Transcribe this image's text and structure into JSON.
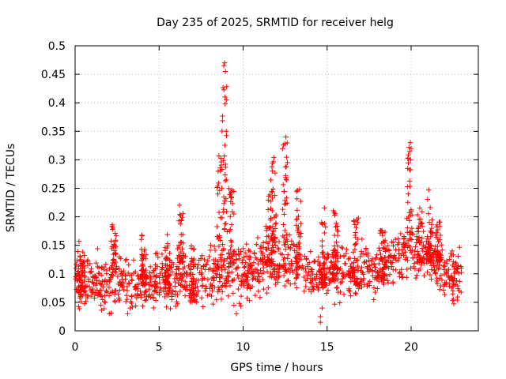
{
  "chart_data": {
    "type": "scatter",
    "title": "Day 235 of 2025, SRMTID for receiver helg",
    "xlabel": "GPS time / hours",
    "ylabel": "SRMTID / TECUs",
    "xlim": [
      0,
      24
    ],
    "ylim": [
      0,
      0.5
    ],
    "xticks": [
      0,
      5,
      10,
      15,
      20
    ],
    "xtick_labels": [
      "0",
      "5",
      "10",
      "15",
      "20"
    ],
    "yticks": [
      0,
      0.05,
      0.1,
      0.15,
      0.2,
      0.25,
      0.3,
      0.35,
      0.4,
      0.45,
      0.5
    ],
    "ytick_labels": [
      "0",
      "0.05",
      "0.1",
      "0.15",
      "0.2",
      "0.25",
      "0.3",
      "0.35",
      "0.4",
      "0.45",
      "0.5"
    ],
    "grid": true,
    "marker": "+",
    "color": "#ff0000",
    "data_end_hour": 23,
    "baseline_envelope": [
      [
        0,
        0.09
      ],
      [
        1,
        0.085
      ],
      [
        2,
        0.08
      ],
      [
        3,
        0.085
      ],
      [
        4,
        0.085
      ],
      [
        5,
        0.085
      ],
      [
        6,
        0.09
      ],
      [
        7,
        0.09
      ],
      [
        8,
        0.1
      ],
      [
        9,
        0.11
      ],
      [
        10,
        0.1
      ],
      [
        11,
        0.11
      ],
      [
        12,
        0.12
      ],
      [
        13,
        0.12
      ],
      [
        14,
        0.1
      ],
      [
        15,
        0.1
      ],
      [
        16,
        0.1
      ],
      [
        17,
        0.1
      ],
      [
        18,
        0.11
      ],
      [
        19,
        0.13
      ],
      [
        20,
        0.14
      ],
      [
        21,
        0.14
      ],
      [
        22,
        0.1
      ],
      [
        23,
        0.09
      ]
    ],
    "clusters": [
      {
        "x": 0.3,
        "y_min": 0.06,
        "y_max": 0.16
      },
      {
        "x": 2.3,
        "y_min": 0.1,
        "y_max": 0.19
      },
      {
        "x": 4.1,
        "y_min": 0.08,
        "y_max": 0.17
      },
      {
        "x": 5.5,
        "y_min": 0.08,
        "y_max": 0.17
      },
      {
        "x": 6.3,
        "y_min": 0.12,
        "y_max": 0.24
      },
      {
        "x": 7.0,
        "y_min": 0.05,
        "y_max": 0.15
      },
      {
        "x": 8.6,
        "y_min": 0.11,
        "y_max": 0.32
      },
      {
        "x": 8.9,
        "y_min": 0.14,
        "y_max": 0.47
      },
      {
        "x": 9.3,
        "y_min": 0.11,
        "y_max": 0.26
      },
      {
        "x": 11.5,
        "y_min": 0.12,
        "y_max": 0.24
      },
      {
        "x": 11.8,
        "y_min": 0.15,
        "y_max": 0.31
      },
      {
        "x": 12.5,
        "y_min": 0.15,
        "y_max": 0.34
      },
      {
        "x": 13.3,
        "y_min": 0.09,
        "y_max": 0.27
      },
      {
        "x": 14.8,
        "y_min": 0.08,
        "y_max": 0.23
      },
      {
        "x": 15.5,
        "y_min": 0.09,
        "y_max": 0.22
      },
      {
        "x": 16.7,
        "y_min": 0.08,
        "y_max": 0.2
      },
      {
        "x": 18.3,
        "y_min": 0.09,
        "y_max": 0.18
      },
      {
        "x": 19.9,
        "y_min": 0.16,
        "y_max": 0.33
      },
      {
        "x": 20.5,
        "y_min": 0.12,
        "y_max": 0.22
      },
      {
        "x": 21.1,
        "y_min": 0.12,
        "y_max": 0.25
      },
      {
        "x": 21.6,
        "y_min": 0.12,
        "y_max": 0.2
      }
    ],
    "outliers": [
      [
        14.6,
        0.015
      ],
      [
        14.6,
        0.025
      ],
      [
        14.7,
        0.04
      ],
      [
        9.6,
        0.03
      ],
      [
        20.0,
        0.32
      ],
      [
        19.95,
        0.33
      ],
      [
        8.85,
        0.465
      ],
      [
        8.95,
        0.455
      ],
      [
        8.9,
        0.47
      ],
      [
        9.0,
        0.405
      ],
      [
        9.0,
        0.35
      ],
      [
        12.55,
        0.34
      ]
    ]
  }
}
